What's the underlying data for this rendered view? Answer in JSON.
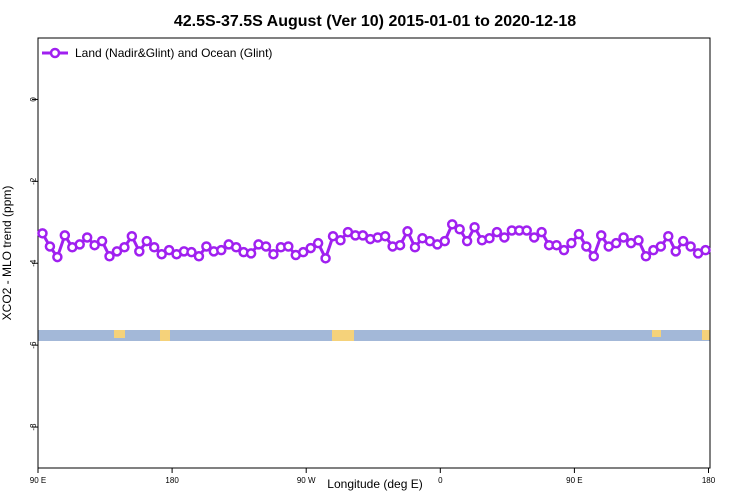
{
  "chart_data": {
    "type": "line",
    "title": "42.5S-37.5S August (Ver 10)   2015-01-01 to 2020-12-18",
    "xlabel": "Longitude (deg E)",
    "ylabel": "XCO2 - MLO trend (ppm)",
    "xlim": [
      90,
      541
    ],
    "ylim": [
      -9,
      1.5
    ],
    "xticks": [
      {
        "value": 90,
        "label": "90 E"
      },
      180,
      {
        "value": 270,
        "label": "90 W"
      },
      {
        "value": 360,
        "label": "0"
      },
      {
        "value": 450,
        "label": "90 E"
      },
      {
        "value": 540,
        "label": "180"
      }
    ],
    "yticks": [
      -8,
      -6,
      -4,
      -2,
      0
    ],
    "legend": "top-left",
    "x": [
      93,
      98,
      103,
      108,
      113,
      118,
      123,
      128,
      133,
      138,
      143,
      148,
      153,
      158,
      163,
      168,
      173,
      178,
      183,
      188,
      193,
      198,
      203,
      208,
      213,
      218,
      223,
      228,
      233,
      238,
      243,
      248,
      253,
      258,
      263,
      268,
      273,
      278,
      283,
      288,
      293,
      298,
      303,
      308,
      313,
      318,
      323,
      328,
      333,
      338,
      343,
      348,
      353,
      358,
      363,
      368,
      373,
      378,
      383,
      388,
      393,
      398,
      403,
      408,
      413,
      418,
      423,
      428,
      433,
      438,
      443,
      448,
      453,
      458,
      463,
      468,
      473,
      478,
      483,
      488,
      493,
      498,
      503,
      508,
      513,
      518,
      523,
      528,
      533,
      538
    ],
    "series": [
      {
        "name": "Land (Nadir&Glint) and Ocean (Glint)",
        "color": "#a020f0",
        "values": [
          -3.27,
          -3.59,
          -3.85,
          -3.32,
          -3.61,
          -3.54,
          -3.37,
          -3.56,
          -3.46,
          -3.83,
          -3.71,
          -3.61,
          -3.34,
          -3.71,
          -3.46,
          -3.61,
          -3.78,
          -3.68,
          -3.78,
          -3.71,
          -3.73,
          -3.83,
          -3.59,
          -3.71,
          -3.68,
          -3.54,
          -3.61,
          -3.73,
          -3.76,
          -3.54,
          -3.59,
          -3.78,
          -3.61,
          -3.59,
          -3.8,
          -3.73,
          -3.63,
          -3.51,
          -3.88,
          -3.34,
          -3.44,
          -3.24,
          -3.32,
          -3.32,
          -3.41,
          -3.37,
          -3.34,
          -3.59,
          -3.56,
          -3.22,
          -3.61,
          -3.39,
          -3.46,
          -3.54,
          -3.46,
          -3.05,
          -3.17,
          -3.46,
          -3.12,
          -3.44,
          -3.39,
          -3.24,
          -3.37,
          -3.2,
          -3.2,
          -3.2,
          -3.37,
          -3.24,
          -3.56,
          -3.56,
          -3.68,
          -3.51,
          -3.29,
          -3.59,
          -3.83,
          -3.32,
          -3.59,
          -3.51,
          -3.37,
          -3.51,
          -3.44,
          -3.83,
          -3.68,
          -3.59,
          -3.34,
          -3.71,
          -3.46,
          -3.59,
          -3.76,
          -3.68
        ]
      }
    ]
  }
}
